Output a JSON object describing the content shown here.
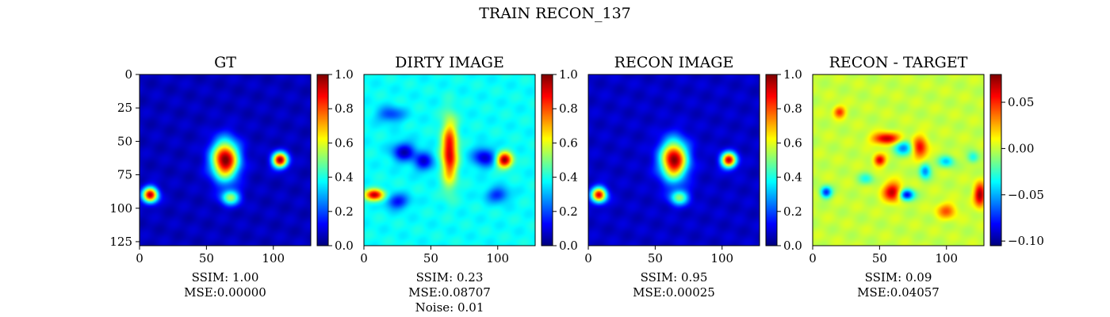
{
  "figure": {
    "suptitle": "TRAIN RECON_137"
  },
  "colormap": "jet",
  "chart_data": [
    {
      "type": "heatmap",
      "title": "GT",
      "extent": {
        "x": [
          0,
          128
        ],
        "y": [
          0,
          128
        ]
      },
      "x_ticks": [
        0,
        50,
        100
      ],
      "y_ticks": [
        0,
        25,
        50,
        75,
        100,
        125
      ],
      "colorbar": {
        "range": [
          0.0,
          1.0
        ],
        "ticks": [
          "0.0",
          "0.2",
          "0.4",
          "0.6",
          "0.8",
          "1.0"
        ]
      },
      "caption": [
        "SSIM: 1.00",
        "MSE:0.00000"
      ],
      "background": 0.06,
      "sources": [
        {
          "x": 64,
          "y": 64,
          "sx": 7,
          "sy": 10,
          "amp": 0.95
        },
        {
          "x": 68,
          "y": 92,
          "sx": 5,
          "sy": 4,
          "amp": 0.45
        },
        {
          "x": 105,
          "y": 64,
          "sx": 4,
          "sy": 4,
          "amp": 0.92
        },
        {
          "x": 8,
          "y": 90,
          "sx": 4,
          "sy": 4,
          "amp": 0.88
        }
      ]
    },
    {
      "type": "heatmap",
      "title": "DIRTY IMAGE",
      "extent": {
        "x": [
          0,
          128
        ],
        "y": [
          0,
          128
        ]
      },
      "x_ticks": [
        0,
        50,
        100
      ],
      "y_ticks": [],
      "colorbar": {
        "range": [
          0.0,
          1.0
        ],
        "ticks": [
          "0.0",
          "0.2",
          "0.4",
          "0.6",
          "0.8",
          "1.0"
        ]
      },
      "caption": [
        "SSIM: 0.23",
        "MSE:0.08707",
        "Noise: 0.01"
      ],
      "background": 0.38,
      "sources": [
        {
          "x": 64,
          "y": 58,
          "sx": 4,
          "sy": 16,
          "amp": 0.55
        },
        {
          "x": 105,
          "y": 64,
          "sx": 4,
          "sy": 4,
          "amp": 0.6
        },
        {
          "x": 8,
          "y": 90,
          "sx": 5,
          "sy": 3,
          "amp": 0.55
        },
        {
          "x": 30,
          "y": 58,
          "sx": 6,
          "sy": 5,
          "amp": -0.32
        },
        {
          "x": 90,
          "y": 62,
          "sx": 6,
          "sy": 5,
          "amp": -0.3
        },
        {
          "x": 45,
          "y": 65,
          "sx": 5,
          "sy": 5,
          "amp": -0.28
        },
        {
          "x": 25,
          "y": 95,
          "sx": 6,
          "sy": 4,
          "amp": -0.25
        },
        {
          "x": 20,
          "y": 30,
          "sx": 7,
          "sy": 4,
          "amp": -0.2
        },
        {
          "x": 100,
          "y": 90,
          "sx": 6,
          "sy": 4,
          "amp": -0.22
        }
      ]
    },
    {
      "type": "heatmap",
      "title": "RECON IMAGE",
      "extent": {
        "x": [
          0,
          128
        ],
        "y": [
          0,
          128
        ]
      },
      "x_ticks": [
        0,
        50,
        100
      ],
      "y_ticks": [],
      "colorbar": {
        "range": [
          0.0,
          1.0
        ],
        "ticks": [
          "0.0",
          "0.2",
          "0.4",
          "0.6",
          "0.8",
          "1.0"
        ]
      },
      "caption": [
        "SSIM: 0.95",
        "MSE:0.00025"
      ],
      "background": 0.07,
      "sources": [
        {
          "x": 64,
          "y": 64,
          "sx": 7,
          "sy": 10,
          "amp": 0.92
        },
        {
          "x": 68,
          "y": 92,
          "sx": 5,
          "sy": 4,
          "amp": 0.42
        },
        {
          "x": 105,
          "y": 64,
          "sx": 4,
          "sy": 4,
          "amp": 0.86
        },
        {
          "x": 8,
          "y": 90,
          "sx": 4,
          "sy": 4,
          "amp": 0.82
        }
      ]
    },
    {
      "type": "heatmap",
      "title": "RECON - TARGET",
      "extent": {
        "x": [
          0,
          128
        ],
        "y": [
          0,
          128
        ]
      },
      "x_ticks": [
        0,
        50,
        100
      ],
      "y_ticks": [],
      "colorbar": {
        "range": [
          -0.105,
          0.08
        ],
        "ticks": [
          "0.05",
          "0.00",
          "−0.05",
          "−0.10"
        ],
        "tick_values": [
          0.05,
          0.0,
          -0.05,
          -0.1
        ]
      },
      "caption": [
        "SSIM: 0.09",
        "MSE:0.04057"
      ],
      "background": 0.0,
      "sources": [
        {
          "x": 55,
          "y": 48,
          "sx": 7,
          "sy": 3,
          "amp": 0.07
        },
        {
          "x": 80,
          "y": 55,
          "sx": 4,
          "sy": 6,
          "amp": 0.06
        },
        {
          "x": 50,
          "y": 64,
          "sx": 3,
          "sy": 3,
          "amp": 0.065
        },
        {
          "x": 60,
          "y": 88,
          "sx": 5,
          "sy": 5,
          "amp": 0.07
        },
        {
          "x": 20,
          "y": 28,
          "sx": 3,
          "sy": 3,
          "amp": 0.05
        },
        {
          "x": 125,
          "y": 90,
          "sx": 3,
          "sy": 6,
          "amp": 0.075
        },
        {
          "x": 100,
          "y": 102,
          "sx": 5,
          "sy": 4,
          "amp": 0.04
        },
        {
          "x": 68,
          "y": 55,
          "sx": 5,
          "sy": 4,
          "amp": -0.055
        },
        {
          "x": 70,
          "y": 90,
          "sx": 4,
          "sy": 3,
          "amp": -0.09
        },
        {
          "x": 10,
          "y": 88,
          "sx": 3,
          "sy": 3,
          "amp": -0.075
        },
        {
          "x": 84,
          "y": 72,
          "sx": 3,
          "sy": 4,
          "amp": -0.06
        },
        {
          "x": 100,
          "y": 65,
          "sx": 4,
          "sy": 3,
          "amp": -0.045
        },
        {
          "x": 120,
          "y": 62,
          "sx": 3,
          "sy": 3,
          "amp": -0.035
        },
        {
          "x": 40,
          "y": 78,
          "sx": 4,
          "sy": 3,
          "amp": -0.03
        }
      ]
    }
  ]
}
